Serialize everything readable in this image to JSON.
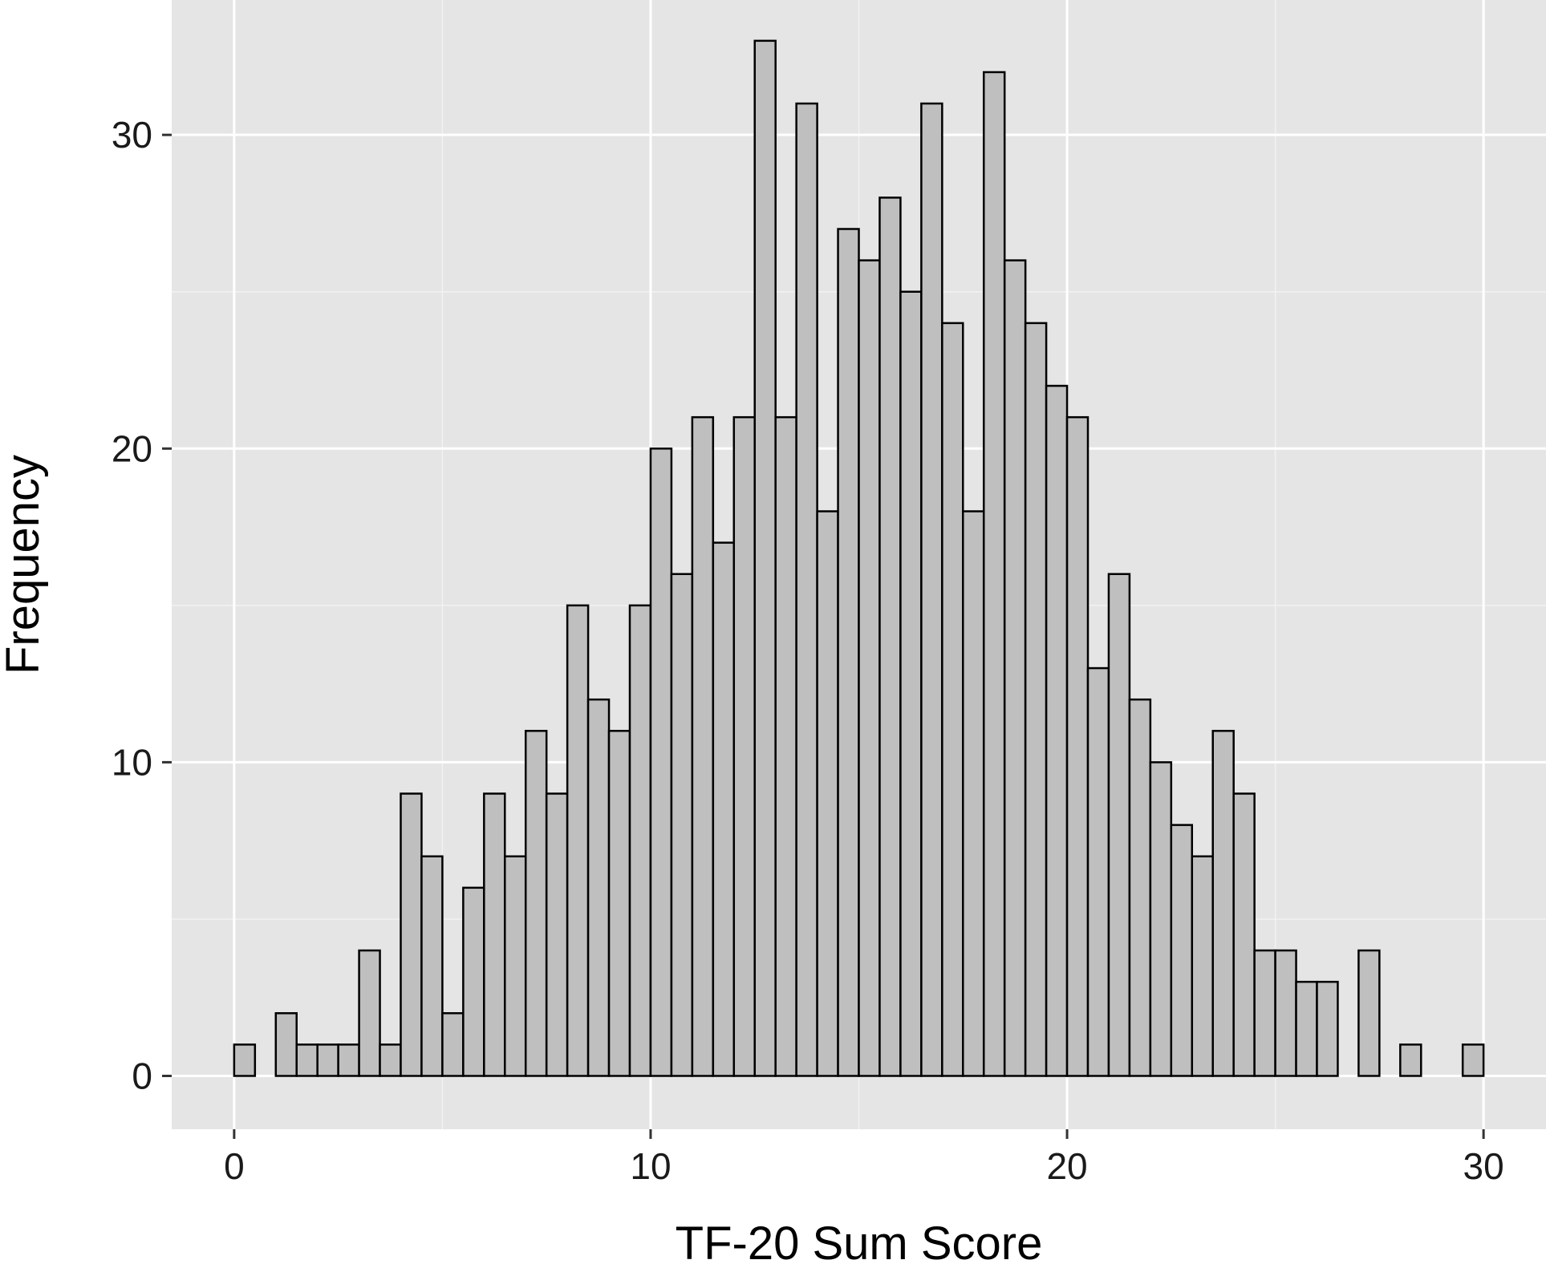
{
  "chart_data": {
    "type": "bar",
    "title": "",
    "xlabel": "TF-20 Sum Score",
    "ylabel": "Frequency",
    "xlim": [
      -1.5,
      31.5
    ],
    "ylim": [
      -1.7,
      34.3
    ],
    "x_ticks": [
      0,
      10,
      20,
      30
    ],
    "y_ticks": [
      0,
      10,
      20,
      30
    ],
    "grid": true,
    "legend": "none",
    "bin_width": 0.5,
    "bin_starts": [
      0,
      0.5,
      1,
      1.5,
      2,
      2.5,
      3,
      3.5,
      4,
      4.5,
      5,
      5.5,
      6,
      6.5,
      7,
      7.5,
      8,
      8.5,
      9,
      9.5,
      10,
      10.5,
      11,
      11.5,
      12,
      12.5,
      13,
      13.5,
      14,
      14.5,
      15,
      15.5,
      16,
      16.5,
      17,
      17.5,
      18,
      18.5,
      19,
      19.5,
      20,
      20.5,
      21,
      21.5,
      22,
      22.5,
      23,
      23.5,
      24,
      24.5,
      25,
      25.5,
      26,
      26.5,
      27,
      27.5,
      28,
      28.5,
      29,
      29.5
    ],
    "values": [
      1,
      0,
      2,
      1,
      1,
      1,
      4,
      1,
      9,
      7,
      2,
      6,
      9,
      7,
      11,
      9,
      15,
      12,
      11,
      15,
      20,
      16,
      21,
      17,
      21,
      33,
      21,
      31,
      18,
      27,
      26,
      28,
      25,
      31,
      24,
      18,
      32,
      26,
      24,
      22,
      21,
      13,
      16,
      12,
      10,
      8,
      7,
      11,
      9,
      4,
      4,
      3,
      3,
      0,
      4,
      0,
      1,
      0,
      0,
      1
    ],
    "colors": {
      "panel_background": "#e5e5e5",
      "grid_major": "#ffffff",
      "grid_minor": "#f2f2f2",
      "bar_fill": "#bfbfbf",
      "bar_stroke": "#000000",
      "tick_mark": "#333333"
    }
  }
}
